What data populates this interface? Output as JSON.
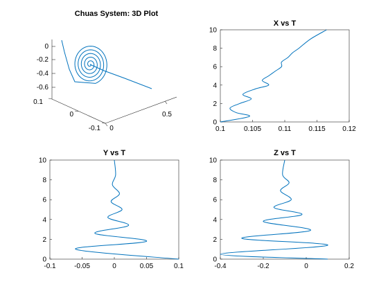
{
  "chart_data": [
    {
      "id": "plot3d",
      "type": "line",
      "projection": "3d",
      "title": "Chuas System: 3D Plot",
      "x_axis": {
        "ticks": [
          0,
          0.5
        ],
        "range": [
          0,
          0.6
        ]
      },
      "y_axis": {
        "ticks": [
          -0.1,
          0,
          0.1
        ],
        "range": [
          -0.1,
          0.1
        ]
      },
      "z_axis": {
        "ticks": [
          0,
          -0.2,
          -0.4,
          -0.6
        ],
        "range": [
          -0.65,
          0.05
        ]
      },
      "grid": false,
      "series": [
        {
          "color": "#0072BD",
          "spiral_center": [
            0.105,
            0.0,
            -0.26
          ],
          "start": [
            0.4,
            0.05,
            -0.6
          ],
          "end": [
            -0.05,
            0.03,
            0.02
          ]
        }
      ]
    },
    {
      "id": "xvt",
      "type": "line",
      "title": "X vs T",
      "xlim": [
        0.1,
        0.12
      ],
      "ylim": [
        0,
        10
      ],
      "xticks": [
        "0.1",
        "0.105",
        "0.11",
        "0.115",
        "0.12"
      ],
      "yticks": [
        "0",
        "2",
        "4",
        "6",
        "8",
        "10"
      ],
      "grid": false,
      "series": [
        {
          "color": "#0072BD",
          "x": [
            0.1,
            0.1045,
            0.1025,
            0.1015,
            0.103,
            0.1048,
            0.1035,
            0.1055,
            0.1075,
            0.1065,
            0.1075,
            0.1085,
            0.1095,
            0.1095,
            0.1105,
            0.1112,
            0.1122,
            0.114,
            0.1165
          ],
          "y": [
            0.0,
            0.6,
            1.0,
            1.5,
            2.0,
            2.5,
            3.0,
            3.6,
            4.0,
            4.5,
            5.0,
            5.5,
            6.0,
            6.5,
            7.0,
            7.5,
            8.0,
            9.0,
            10.0
          ]
        }
      ]
    },
    {
      "id": "yvt",
      "type": "line",
      "title": "Y vs T",
      "xlim": [
        -0.1,
        0.1
      ],
      "ylim": [
        0,
        10
      ],
      "xticks": [
        "-0.1",
        "-0.05",
        "0",
        "0.05",
        "0.1"
      ],
      "yticks": [
        "0",
        "2",
        "4",
        "6",
        "8",
        "10"
      ],
      "grid": false,
      "series": [
        {
          "color": "#0072BD",
          "x": [
            0.1,
            -0.06,
            0.05,
            -0.03,
            0.022,
            -0.01,
            0.012,
            -0.005,
            0.008,
            -0.003,
            0.002,
            0.0
          ],
          "y": [
            0.0,
            1.0,
            1.8,
            2.6,
            3.4,
            4.2,
            5.0,
            5.8,
            6.6,
            7.5,
            8.5,
            10.0
          ]
        }
      ]
    },
    {
      "id": "zvt",
      "type": "line",
      "title": "Z vs T",
      "xlim": [
        -0.4,
        0.2
      ],
      "ylim": [
        0,
        10
      ],
      "xticks": [
        "-0.4",
        "-0.2",
        "0",
        "0.2"
      ],
      "yticks": [
        "0",
        "2",
        "4",
        "6",
        "8",
        "10"
      ],
      "grid": false,
      "series": [
        {
          "color": "#0072BD",
          "x": [
            0.1,
            -0.4,
            0.1,
            -0.3,
            0.02,
            -0.2,
            -0.02,
            -0.15,
            -0.07,
            -0.12,
            -0.08,
            -0.11,
            -0.1
          ],
          "y": [
            0.0,
            0.5,
            1.4,
            2.1,
            2.9,
            3.8,
            4.5,
            5.2,
            6.0,
            6.9,
            7.7,
            8.5,
            10.0
          ]
        }
      ]
    }
  ]
}
